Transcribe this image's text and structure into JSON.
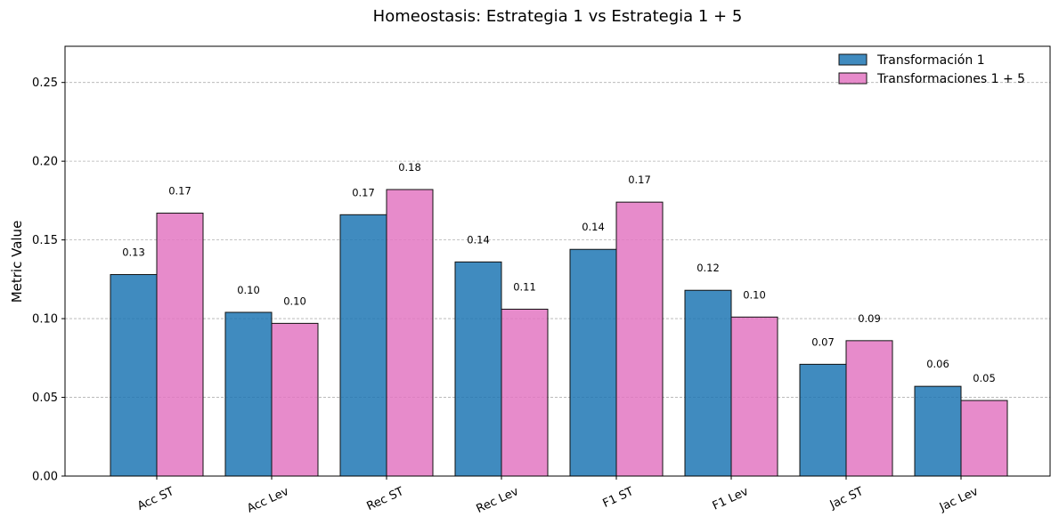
{
  "chart_data": {
    "type": "bar",
    "title": "Homeostasis: Estrategia 1 vs Estrategia 1 + 5",
    "xlabel": "",
    "ylabel": "Metric Value",
    "categories": [
      "Acc ST",
      "Acc Lev",
      "Rec ST",
      "Rec Lev",
      "F1 ST",
      "F1 Lev",
      "Jac ST",
      "Jac Lev"
    ],
    "series": [
      {
        "name": "Transformación 1",
        "color": "#1f77b4",
        "values": [
          0.128,
          0.104,
          0.166,
          0.136,
          0.144,
          0.118,
          0.071,
          0.057
        ],
        "labels": [
          "0.13",
          "0.10",
          "0.17",
          "0.14",
          "0.14",
          "0.12",
          "0.07",
          "0.06"
        ]
      },
      {
        "name": "Transformaciones 1 + 5",
        "color": "#e377c2",
        "values": [
          0.167,
          0.097,
          0.182,
          0.106,
          0.174,
          0.101,
          0.086,
          0.048
        ],
        "labels": [
          "0.17",
          "0.10",
          "0.18",
          "0.11",
          "0.17",
          "0.10",
          "0.09",
          "0.05"
        ]
      }
    ],
    "ylim": [
      0,
      0.273
    ],
    "yticks": [
      "0.00",
      "0.05",
      "0.10",
      "0.15",
      "0.20",
      "0.25"
    ],
    "grid": "y-dashed",
    "legend_position": "top-right"
  }
}
